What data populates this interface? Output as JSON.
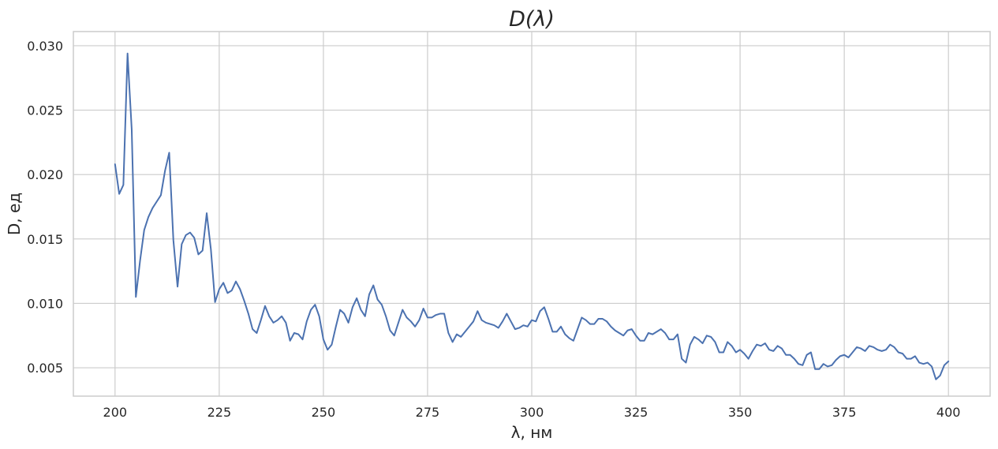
{
  "chart_data": {
    "type": "line",
    "title": "D(λ)",
    "xlabel": "λ, нм",
    "ylabel": "D, ед",
    "xlim": [
      190,
      410
    ],
    "ylim": [
      0.0028,
      0.0311
    ],
    "xticks": [
      200,
      225,
      250,
      275,
      300,
      325,
      350,
      375,
      400
    ],
    "xtick_labels": [
      "200",
      "225",
      "250",
      "275",
      "300",
      "325",
      "350",
      "375",
      "400"
    ],
    "yticks": [
      0.005,
      0.01,
      0.015,
      0.02,
      0.025,
      0.03
    ],
    "ytick_labels": [
      "0.005",
      "0.010",
      "0.015",
      "0.020",
      "0.025",
      "0.030"
    ],
    "grid": true,
    "line_color": "#4c72b0",
    "series": [
      {
        "x": [
          200,
          201,
          202,
          203,
          204,
          205,
          206,
          207,
          208,
          209,
          210,
          211,
          212,
          213,
          214,
          215,
          216,
          217,
          218,
          219,
          220,
          221,
          222,
          223,
          224,
          225,
          226,
          227,
          228,
          229,
          230,
          231,
          232,
          233,
          234,
          235,
          236,
          237,
          238,
          239,
          240,
          241,
          242,
          243,
          244,
          245,
          246,
          247,
          248,
          249,
          250,
          251,
          252,
          253,
          254,
          255,
          256,
          257,
          258,
          259,
          260,
          261,
          262,
          263,
          264,
          265,
          266,
          267,
          268,
          269,
          270,
          271,
          272,
          273,
          274,
          275,
          276,
          277,
          278,
          279,
          280,
          281,
          282,
          283,
          284,
          285,
          286,
          287,
          288,
          289,
          290,
          291,
          292,
          293,
          294,
          295,
          296,
          297,
          298,
          299,
          300,
          301,
          302,
          303,
          304,
          305,
          306,
          307,
          308,
          309,
          310,
          311,
          312,
          313,
          314,
          315,
          316,
          317,
          318,
          319,
          320,
          321,
          322,
          323,
          324,
          325,
          326,
          327,
          328,
          329,
          330,
          331,
          332,
          333,
          334,
          335,
          336,
          337,
          338,
          339,
          340,
          341,
          342,
          343,
          344,
          345,
          346,
          347,
          348,
          349,
          350,
          351,
          352,
          353,
          354,
          355,
          356,
          357,
          358,
          359,
          360,
          361,
          362,
          363,
          364,
          365,
          366,
          367,
          368,
          369,
          370,
          371,
          372,
          373,
          374,
          375,
          376,
          377,
          378,
          379,
          380,
          381,
          382,
          383,
          384,
          385,
          386,
          387,
          388,
          389,
          390,
          391,
          392,
          393,
          394,
          395,
          396,
          397,
          398,
          399,
          400
        ],
        "values": [
          0.0208,
          0.0185,
          0.0192,
          0.0294,
          0.0235,
          0.0105,
          0.0133,
          0.0157,
          0.0167,
          0.0174,
          0.0179,
          0.0184,
          0.0203,
          0.0217,
          0.0149,
          0.0113,
          0.0146,
          0.0153,
          0.0155,
          0.0151,
          0.0138,
          0.0141,
          0.017,
          0.0142,
          0.0101,
          0.0111,
          0.0116,
          0.0108,
          0.011,
          0.0117,
          0.0111,
          0.0102,
          0.0092,
          0.008,
          0.0077,
          0.0087,
          0.0098,
          0.009,
          0.0085,
          0.0087,
          0.009,
          0.0085,
          0.0071,
          0.0077,
          0.0076,
          0.0072,
          0.0086,
          0.0095,
          0.0099,
          0.009,
          0.0072,
          0.0064,
          0.0068,
          0.0082,
          0.0095,
          0.0092,
          0.0085,
          0.0097,
          0.0104,
          0.0095,
          0.009,
          0.0107,
          0.0114,
          0.0103,
          0.0099,
          0.009,
          0.0079,
          0.0075,
          0.0085,
          0.0095,
          0.0089,
          0.0086,
          0.0082,
          0.0087,
          0.0096,
          0.0089,
          0.0089,
          0.0091,
          0.0092,
          0.0092,
          0.0077,
          0.007,
          0.0076,
          0.0074,
          0.0078,
          0.0082,
          0.0086,
          0.0094,
          0.0087,
          0.0085,
          0.0084,
          0.0083,
          0.0081,
          0.0086,
          0.0092,
          0.0086,
          0.008,
          0.0081,
          0.0083,
          0.0082,
          0.0087,
          0.0086,
          0.0094,
          0.0097,
          0.0088,
          0.0078,
          0.0078,
          0.0082,
          0.0076,
          0.0073,
          0.0071,
          0.008,
          0.0089,
          0.0087,
          0.0084,
          0.0084,
          0.0088,
          0.0088,
          0.0086,
          0.0082,
          0.0079,
          0.0077,
          0.0075,
          0.0079,
          0.008,
          0.0075,
          0.0071,
          0.0071,
          0.0077,
          0.0076,
          0.0078,
          0.008,
          0.0077,
          0.0072,
          0.0072,
          0.0076,
          0.0057,
          0.0054,
          0.0068,
          0.0074,
          0.0072,
          0.0069,
          0.0075,
          0.0074,
          0.007,
          0.0062,
          0.0062,
          0.007,
          0.0067,
          0.0062,
          0.0064,
          0.0061,
          0.0057,
          0.0063,
          0.0068,
          0.0067,
          0.0069,
          0.0064,
          0.0063,
          0.0067,
          0.0065,
          0.006,
          0.006,
          0.0057,
          0.0053,
          0.0052,
          0.006,
          0.0062,
          0.0049,
          0.0049,
          0.0053,
          0.0051,
          0.0052,
          0.0056,
          0.0059,
          0.006,
          0.0058,
          0.0062,
          0.0066,
          0.0065,
          0.0063,
          0.0067,
          0.0066,
          0.0064,
          0.0063,
          0.0064,
          0.0068,
          0.0066,
          0.0062,
          0.0061,
          0.0057,
          0.0057,
          0.0059,
          0.0054,
          0.0053,
          0.0054,
          0.0051,
          0.0041,
          0.0044,
          0.0052,
          0.0055
        ]
      }
    ]
  }
}
